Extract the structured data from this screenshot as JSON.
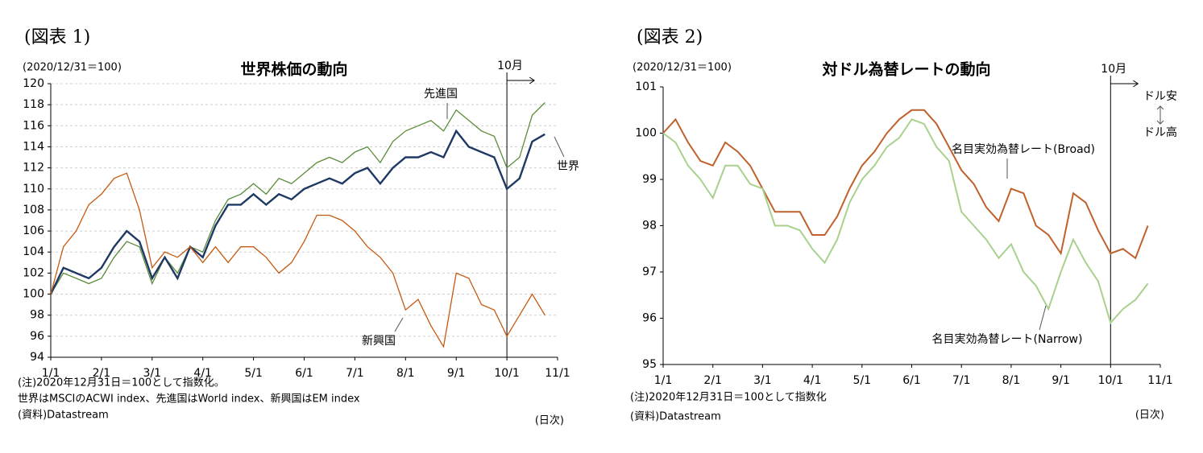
{
  "chart_data": [
    {
      "type": "line",
      "figure_label": "(図表 1)",
      "title": "世界株価の動向",
      "unit_note": "(2020/12/31＝100)",
      "marker_label": "10月",
      "categories": [
        "1/1",
        null,
        null,
        null,
        "2/1",
        null,
        null,
        null,
        "3/1",
        null,
        null,
        null,
        "4/1",
        null,
        null,
        null,
        "5/1",
        null,
        null,
        null,
        "6/1",
        null,
        null,
        null,
        "7/1",
        null,
        null,
        null,
        "8/1",
        null,
        null,
        null,
        "9/1",
        null,
        null,
        null,
        "10/1",
        null,
        null,
        null,
        "11/1"
      ],
      "ylim": [
        94,
        120
      ],
      "yticks": [
        94,
        96,
        98,
        100,
        102,
        104,
        106,
        108,
        110,
        112,
        114,
        116,
        118,
        120
      ],
      "grid": true,
      "series": [
        {
          "name": "先進国",
          "color": "#5b8c3a",
          "values": [
            100,
            102,
            101.5,
            101,
            101.5,
            103.5,
            105,
            104.5,
            101,
            103.5,
            102,
            104.5,
            104,
            107,
            109,
            109.5,
            110.5,
            109.5,
            111,
            110.5,
            111.5,
            112.5,
            113,
            112.5,
            113.5,
            114,
            112.5,
            114.5,
            115.5,
            116,
            116.5,
            115.5,
            117.5,
            116.5,
            115.5,
            115,
            112,
            113,
            117,
            118.2,
            null
          ]
        },
        {
          "name": "世界",
          "color": "#1f3864",
          "values": [
            100,
            102.5,
            102,
            101.5,
            102.5,
            104.5,
            106,
            105,
            101.5,
            103.5,
            101.5,
            104.5,
            103.5,
            106.5,
            108.5,
            108.5,
            109.5,
            108.5,
            109.5,
            109,
            110,
            110.5,
            111,
            110.5,
            111.5,
            112,
            110.5,
            112,
            113,
            113,
            113.5,
            113,
            115.5,
            114,
            113.5,
            113,
            110,
            111,
            114.5,
            115.2,
            null
          ]
        },
        {
          "name": "新興国",
          "color": "#c55a11",
          "values": [
            100,
            104.5,
            106,
            108.5,
            109.5,
            111,
            111.5,
            108,
            102.5,
            104,
            103.5,
            104.5,
            103,
            104.5,
            103,
            104.5,
            104.5,
            103.5,
            102,
            103,
            105,
            107.5,
            107.5,
            107,
            106,
            104.5,
            103.5,
            102,
            98.5,
            99.5,
            97,
            95,
            102,
            101.5,
            99,
            98.5,
            96,
            98,
            100,
            98,
            null
          ]
        }
      ],
      "notes": [
        "(注)2020年12月31日＝100として指数化。",
        "世界はMSCIのACWI index、先進国はWorld index、新興国はEM index",
        "(資料)Datastream"
      ],
      "frequency_note": "(日次)"
    },
    {
      "type": "line",
      "figure_label": "(図表 2)",
      "title": "対ドル為替レートの動向",
      "unit_note": "(2020/12/31＝100)",
      "marker_label": "10月",
      "direction_labels": [
        "ドル安",
        "ドル高"
      ],
      "categories": [
        "1/1",
        null,
        null,
        null,
        "2/1",
        null,
        null,
        null,
        "3/1",
        null,
        null,
        null,
        "4/1",
        null,
        null,
        null,
        "5/1",
        null,
        null,
        null,
        "6/1",
        null,
        null,
        null,
        "7/1",
        null,
        null,
        null,
        "8/1",
        null,
        null,
        null,
        "9/1",
        null,
        null,
        null,
        "10/1",
        null,
        null,
        null,
        "11/1"
      ],
      "ylim": [
        95,
        101
      ],
      "yticks": [
        95,
        96,
        97,
        98,
        99,
        100,
        101
      ],
      "grid": false,
      "series": [
        {
          "name": "名目実効為替レート(Broad)",
          "color": "#c0612b",
          "values": [
            100,
            100.3,
            99.8,
            99.4,
            99.3,
            99.8,
            99.6,
            99.3,
            98.8,
            98.3,
            98.3,
            98.3,
            97.8,
            97.8,
            98.2,
            98.8,
            99.3,
            99.6,
            100,
            100.3,
            100.5,
            100.5,
            100.2,
            99.7,
            99.2,
            98.9,
            98.4,
            98.1,
            98.8,
            98.7,
            98,
            97.8,
            97.4,
            98.7,
            98.5,
            97.9,
            97.4,
            97.5,
            97.3,
            98,
            null
          ]
        },
        {
          "name": "名目実効為替レート(Narrow)",
          "color": "#a9d18e",
          "values": [
            100,
            99.8,
            99.3,
            99,
            98.6,
            99.3,
            99.3,
            98.9,
            98.8,
            98,
            98,
            97.9,
            97.5,
            97.2,
            97.7,
            98.5,
            99,
            99.3,
            99.7,
            99.9,
            100.3,
            100.2,
            99.7,
            99.4,
            98.3,
            98,
            97.7,
            97.3,
            97.6,
            97,
            96.7,
            96.2,
            97,
            97.7,
            97.2,
            96.8,
            95.9,
            96.2,
            96.4,
            96.75,
            null
          ]
        }
      ],
      "notes": [
        "(注)2020年12月31日＝100として指数化",
        "(資料)Datastream"
      ],
      "frequency_note": "(日次)"
    }
  ]
}
